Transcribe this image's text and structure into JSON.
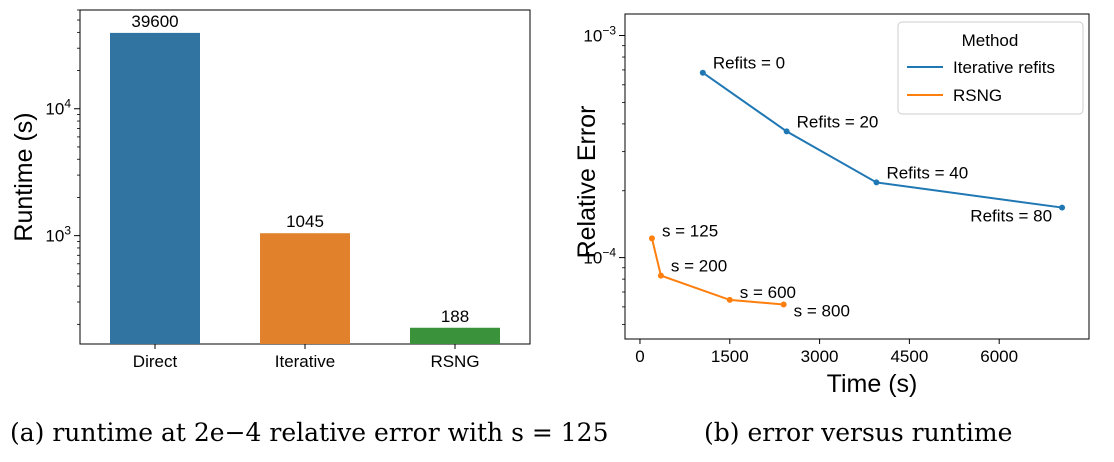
{
  "captions": {
    "a": "(a) runtime at 2e−4 relative error with s = 125",
    "b": "(b) error versus runtime"
  },
  "chart_data": [
    {
      "type": "bar",
      "categories": [
        "Direct",
        "Iterative",
        "RSNG"
      ],
      "values": [
        39600,
        1045,
        188
      ],
      "data_labels": [
        "39600",
        "1045",
        "188"
      ],
      "colors": [
        "#3274a1",
        "#e1812c",
        "#3a923a"
      ],
      "ylabel": "Runtime (s)",
      "yscale": "log",
      "ylim": [
        140,
        60000
      ],
      "yticks": [
        {
          "value": 1000,
          "base": "10",
          "exp": "3"
        },
        {
          "value": 10000,
          "base": "10",
          "exp": "4"
        }
      ],
      "grid": false
    },
    {
      "type": "line",
      "xlabel": "Time (s)",
      "ylabel": "Relative Error",
      "yscale": "log",
      "xlim": [
        -250,
        7500
      ],
      "ylim": [
        4.3e-05,
        0.00125
      ],
      "xticks": [
        "0",
        "1500",
        "3000",
        "4500",
        "6000"
      ],
      "xtick_values": [
        0,
        1500,
        3000,
        4500,
        6000
      ],
      "yticks": [
        {
          "value": 0.0001,
          "base": "10",
          "exp": "−4"
        },
        {
          "value": 0.001,
          "base": "10",
          "exp": "−3"
        }
      ],
      "legend": {
        "title": "Method",
        "position": "top-right"
      },
      "grid": false,
      "series": [
        {
          "name": "Iterative refits",
          "color": "#1f77b4",
          "points": [
            {
              "x": 1050,
              "y": 0.00068,
              "label": "Refits = 0"
            },
            {
              "x": 2450,
              "y": 0.00037,
              "label": "Refits = 20"
            },
            {
              "x": 3950,
              "y": 0.000218,
              "label": "Refits = 40"
            },
            {
              "x": 7050,
              "y": 0.000168,
              "label": "Refits = 80"
            }
          ]
        },
        {
          "name": "RSNG",
          "color": "#ff7f0e",
          "points": [
            {
              "x": 200,
              "y": 0.000122,
              "label": "s = 125"
            },
            {
              "x": 350,
              "y": 8.3e-05,
              "label": "s = 200"
            },
            {
              "x": 1500,
              "y": 6.45e-05,
              "label": "s = 600"
            },
            {
              "x": 2400,
              "y": 6.15e-05,
              "label": "s = 800"
            }
          ]
        }
      ]
    }
  ]
}
